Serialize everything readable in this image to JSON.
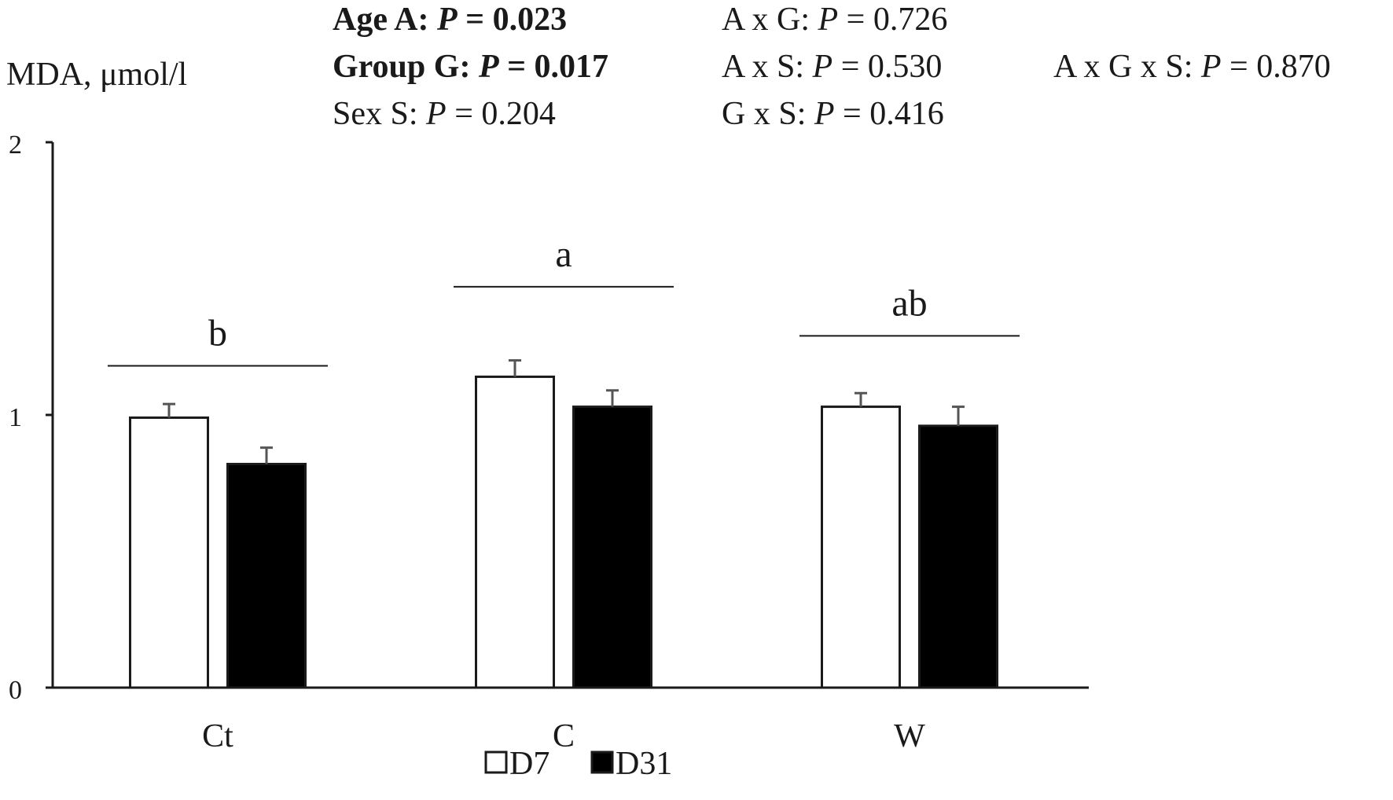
{
  "chart_data": {
    "type": "bar",
    "ylabel": "MDA, μmol/l",
    "ylim": [
      0,
      2
    ],
    "yticks": [
      "0",
      "1",
      "2"
    ],
    "categories": [
      "Ct",
      "C",
      "W"
    ],
    "series": [
      {
        "name": "D7",
        "color": "#ffffff",
        "values": [
          0.99,
          1.14,
          1.03
        ],
        "errors": [
          0.05,
          0.06,
          0.05
        ]
      },
      {
        "name": "D31",
        "color": "#000000",
        "values": [
          0.82,
          1.03,
          0.96
        ],
        "errors": [
          0.06,
          0.06,
          0.07
        ]
      }
    ],
    "group_letters": [
      "b",
      "a",
      "ab"
    ],
    "group_letter_levels": [
      1.18,
      1.47,
      1.29
    ],
    "legend_position": "bottom-center",
    "stats": {
      "age_label": "Age A: ",
      "age_p": "P",
      "age_value": " = 0.023",
      "group_label": "Group G: ",
      "group_p": "P",
      "group_value": " = 0.017",
      "sex_label": "Sex S: ",
      "sex_p": "P",
      "sex_value": " = 0.204",
      "axg_label": "A x G: ",
      "axg_p": "P",
      "axg_value": " = 0.726",
      "axs_label": "A x S: ",
      "axs_p": "P",
      "axs_value": " = 0.530",
      "gxs_label": "G x S: ",
      "gxs_p": "P",
      "gxs_value": " = 0.416",
      "axgxs_label": "A x G x S: ",
      "axgxs_p": "P",
      "axgxs_value": " = 0.870"
    }
  }
}
